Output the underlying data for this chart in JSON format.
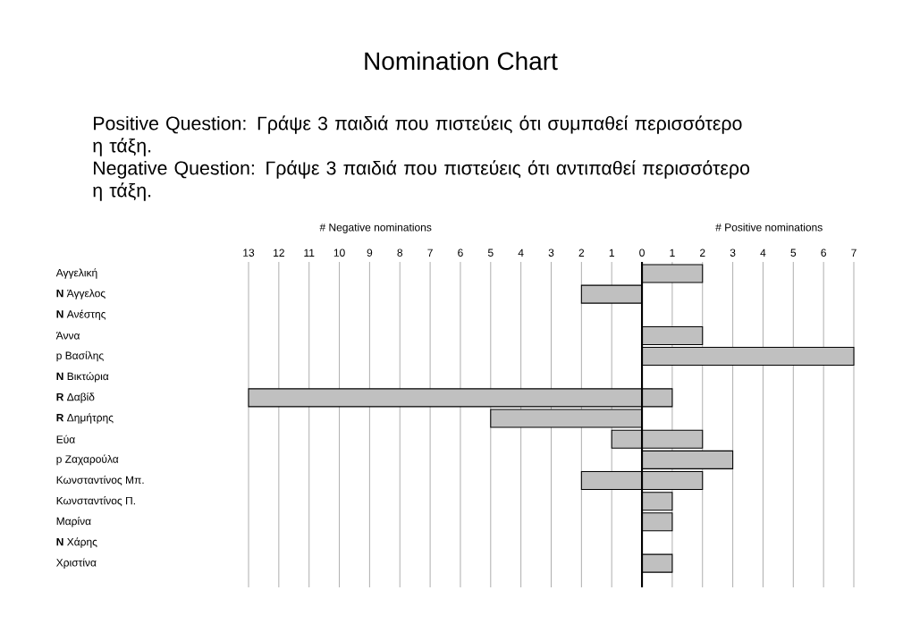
{
  "chart_data": {
    "type": "bar",
    "orientation": "horizontal",
    "title": "Nomination Chart",
    "annotations": [
      "Positive Question: Γράψε 3 παιδιά που πιστεύεις ότι συμπαθεί περισσότερο η τάξη.",
      "Negative Question: Γράψε 3 παιδιά που πιστεύεις ότι αντιπαθεί περισσότερο η τάξη.",
      "# Negative nominations",
      "# Positive nominations"
    ],
    "categories": [
      "Αγγελική",
      "**N** Άγγελος",
      "**N** Ανέστης",
      "Άννα",
      "p Βασίλης",
      "**N** Βικτώρια",
      "**R** Δαβίδ",
      "**R** Δημήτρης",
      "Εύα",
      "p Ζαχαρούλα",
      "Κωνσταντίνος Μπ.",
      "Κωνσταντίνος Π.",
      "Μαρίνα",
      "**N** Χάρης",
      "Χριστίνα"
    ],
    "series": [
      {
        "color": "#c0c0c0",
        "values": [
          null,
          -2,
          null,
          null,
          null,
          null,
          -13,
          -5,
          -1,
          null,
          -2,
          null,
          null,
          null,
          null
        ]
      },
      {
        "color": "#c0c0c0",
        "values": [
          2,
          null,
          null,
          2,
          7,
          null,
          1,
          null,
          2,
          3,
          2,
          1,
          1,
          null,
          1
        ]
      }
    ],
    "xlim": [
      -13,
      7
    ],
    "xticks": [
      {
        "value": -13,
        "label": "13"
      },
      {
        "value": -12,
        "label": "12"
      },
      {
        "value": -11,
        "label": "11"
      },
      {
        "value": -10,
        "label": "10"
      },
      {
        "value": -9,
        "label": "9"
      },
      {
        "value": -8,
        "label": "8"
      },
      {
        "value": -7,
        "label": "7"
      },
      {
        "value": -6,
        "label": "6"
      },
      {
        "value": -5,
        "label": "5"
      },
      {
        "value": -4,
        "label": "4"
      },
      {
        "value": -3,
        "label": "3"
      },
      {
        "value": -2,
        "label": "2"
      },
      {
        "value": -1,
        "label": "1"
      },
      0,
      1,
      2,
      3,
      4,
      5,
      6,
      7
    ],
    "ref_lines": [
      {
        "axis": "x",
        "value": 0,
        "color": "#000000"
      }
    ],
    "grid": "x"
  }
}
